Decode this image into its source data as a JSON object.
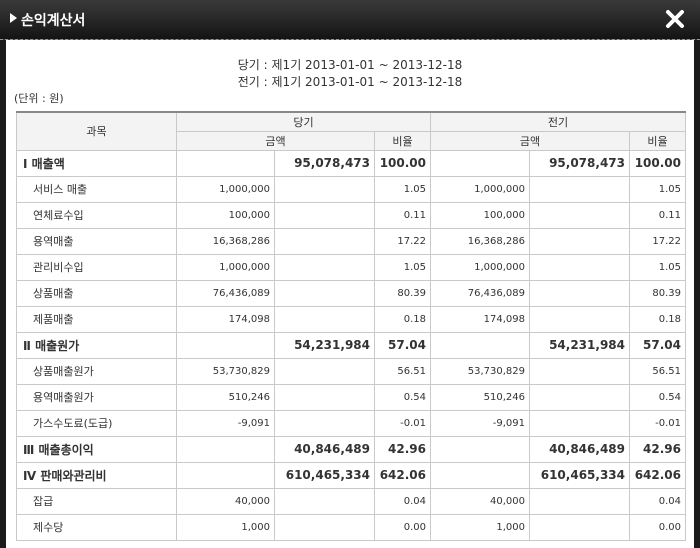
{
  "window": {
    "title": "손익계산서",
    "close_icon": "close-icon"
  },
  "period": {
    "current": "당기 : 제1기 2013-01-01 ~ 2013-12-18",
    "previous": "전기 : 제1기 2013-01-01 ~ 2013-12-18"
  },
  "unit": "(단위 : 원)",
  "headers": {
    "account": "과목",
    "current": "당기",
    "previous": "전기",
    "amount": "금액",
    "ratio": "비율"
  },
  "rows": [
    {
      "type": "major",
      "name": "Ⅰ 매출액",
      "cur_detail": "",
      "cur_total": "95,078,473",
      "cur_ratio": "100.00",
      "prev_detail": "",
      "prev_total": "95,078,473",
      "prev_ratio": "100.00"
    },
    {
      "type": "minor",
      "name": "서비스 매출",
      "cur_detail": "1,000,000",
      "cur_total": "",
      "cur_ratio": "1.05",
      "prev_detail": "1,000,000",
      "prev_total": "",
      "prev_ratio": "1.05"
    },
    {
      "type": "minor",
      "name": "연체료수입",
      "cur_detail": "100,000",
      "cur_total": "",
      "cur_ratio": "0.11",
      "prev_detail": "100,000",
      "prev_total": "",
      "prev_ratio": "0.11"
    },
    {
      "type": "minor",
      "name": "용역매출",
      "cur_detail": "16,368,286",
      "cur_total": "",
      "cur_ratio": "17.22",
      "prev_detail": "16,368,286",
      "prev_total": "",
      "prev_ratio": "17.22"
    },
    {
      "type": "minor",
      "name": "관리비수입",
      "cur_detail": "1,000,000",
      "cur_total": "",
      "cur_ratio": "1.05",
      "prev_detail": "1,000,000",
      "prev_total": "",
      "prev_ratio": "1.05"
    },
    {
      "type": "minor",
      "name": "상품매출",
      "cur_detail": "76,436,089",
      "cur_total": "",
      "cur_ratio": "80.39",
      "prev_detail": "76,436,089",
      "prev_total": "",
      "prev_ratio": "80.39"
    },
    {
      "type": "minor",
      "name": "제품매출",
      "cur_detail": "174,098",
      "cur_total": "",
      "cur_ratio": "0.18",
      "prev_detail": "174,098",
      "prev_total": "",
      "prev_ratio": "0.18"
    },
    {
      "type": "major",
      "name": "Ⅱ 매출원가",
      "cur_detail": "",
      "cur_total": "54,231,984",
      "cur_ratio": "57.04",
      "prev_detail": "",
      "prev_total": "54,231,984",
      "prev_ratio": "57.04"
    },
    {
      "type": "minor",
      "name": "상품매출원가",
      "cur_detail": "53,730,829",
      "cur_total": "",
      "cur_ratio": "56.51",
      "prev_detail": "53,730,829",
      "prev_total": "",
      "prev_ratio": "56.51"
    },
    {
      "type": "minor",
      "name": "용역매출원가",
      "cur_detail": "510,246",
      "cur_total": "",
      "cur_ratio": "0.54",
      "prev_detail": "510,246",
      "prev_total": "",
      "prev_ratio": "0.54"
    },
    {
      "type": "minor",
      "name": "가스수도료(도급)",
      "cur_detail": "-9,091",
      "cur_total": "",
      "cur_ratio": "-0.01",
      "prev_detail": "-9,091",
      "prev_total": "",
      "prev_ratio": "-0.01"
    },
    {
      "type": "major",
      "name": "Ⅲ 매출총이익",
      "cur_detail": "",
      "cur_total": "40,846,489",
      "cur_ratio": "42.96",
      "prev_detail": "",
      "prev_total": "40,846,489",
      "prev_ratio": "42.96"
    },
    {
      "type": "major",
      "name": "Ⅳ 판매와관리비",
      "cur_detail": "",
      "cur_total": "610,465,334",
      "cur_ratio": "642.06",
      "prev_detail": "",
      "prev_total": "610,465,334",
      "prev_ratio": "642.06"
    },
    {
      "type": "minor",
      "name": "잡급",
      "cur_detail": "40,000",
      "cur_total": "",
      "cur_ratio": "0.04",
      "prev_detail": "40,000",
      "prev_total": "",
      "prev_ratio": "0.04"
    },
    {
      "type": "minor",
      "name": "제수당",
      "cur_detail": "1,000",
      "cur_total": "",
      "cur_ratio": "0.00",
      "prev_detail": "1,000",
      "prev_total": "",
      "prev_ratio": "0.00"
    }
  ]
}
